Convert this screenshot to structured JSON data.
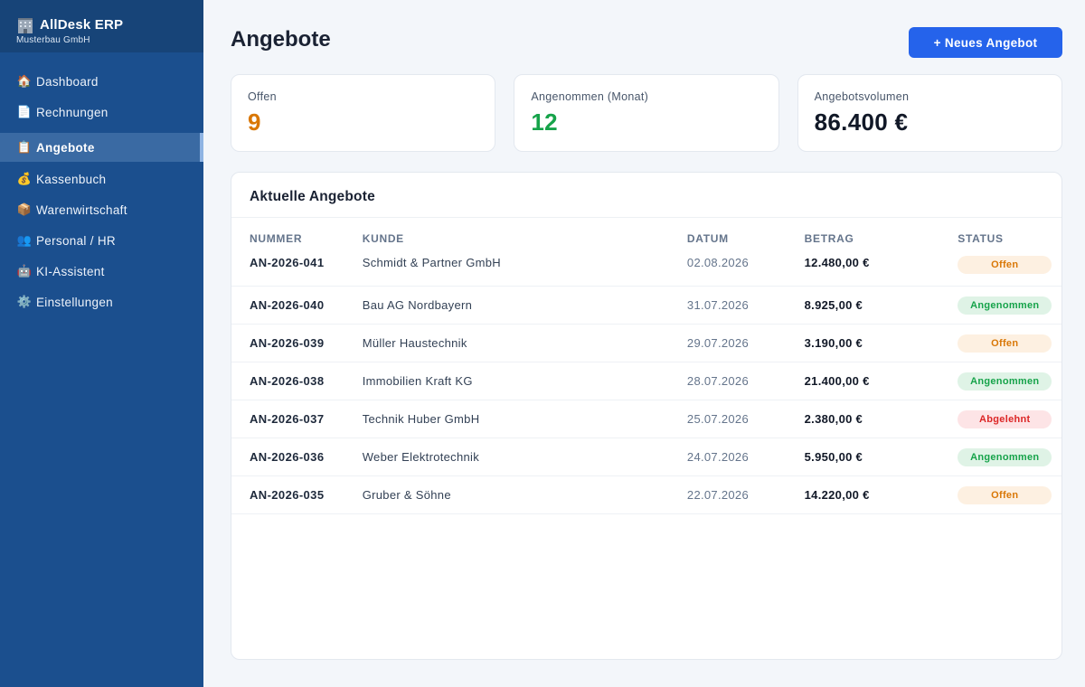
{
  "app": {
    "name": "AllDesk ERP",
    "company": "Musterbau GmbH",
    "logo_icon": "office-building-icon"
  },
  "sidebar": {
    "items": [
      {
        "label": "Dashboard",
        "icon": "🏠",
        "icon_name": "house-icon",
        "active": false
      },
      {
        "label": "Rechnungen",
        "icon": "📄",
        "icon_name": "document-icon",
        "active": false
      },
      {
        "label": "Angebote",
        "icon": "📋",
        "icon_name": "clipboard-icon",
        "active": true
      },
      {
        "label": "Kassenbuch",
        "icon": "💰",
        "icon_name": "money-bag-icon",
        "active": false
      },
      {
        "label": "Warenwirtschaft",
        "icon": "📦",
        "icon_name": "package-icon",
        "active": false
      },
      {
        "label": "Personal / HR",
        "icon": "👥",
        "icon_name": "people-icon",
        "active": false
      },
      {
        "label": "KI-Assistent",
        "icon": "🤖",
        "icon_name": "robot-icon",
        "active": false
      },
      {
        "label": "Einstellungen",
        "icon": "⚙️",
        "icon_name": "gear-icon",
        "active": false
      }
    ]
  },
  "header": {
    "title": "Angebote",
    "new_button_label": "+ Neues Angebot"
  },
  "kpis": [
    {
      "label": "Offen",
      "value": "9",
      "color": "#d97706"
    },
    {
      "label": "Angenommen (Monat)",
      "value": "12",
      "color": "#16a34a"
    },
    {
      "label": "Angebotsvolumen",
      "value": "86.400 €",
      "color": "#111827"
    }
  ],
  "table": {
    "title": "Aktuelle Angebote",
    "columns": [
      "NUMMER",
      "KUNDE",
      "DATUM",
      "BETRAG",
      "STATUS"
    ],
    "rows": [
      {
        "nummer": "AN-2026-041",
        "kunde": "Schmidt & Partner GmbH",
        "datum": "02.08.2026",
        "betrag": "12.480,00 €",
        "status": "Offen",
        "status_type": "offen"
      },
      {
        "nummer": "AN-2026-040",
        "kunde": "Bau AG Nordbayern",
        "datum": "31.07.2026",
        "betrag": "8.925,00 €",
        "status": "Angenommen",
        "status_type": "angenommen"
      },
      {
        "nummer": "AN-2026-039",
        "kunde": "Müller Haustechnik",
        "datum": "29.07.2026",
        "betrag": "3.190,00 €",
        "status": "Offen",
        "status_type": "offen"
      },
      {
        "nummer": "AN-2026-038",
        "kunde": "Immobilien Kraft KG",
        "datum": "28.07.2026",
        "betrag": "21.400,00 €",
        "status": "Angenommen",
        "status_type": "angenommen"
      },
      {
        "nummer": "AN-2026-037",
        "kunde": "Technik Huber GmbH",
        "datum": "25.07.2026",
        "betrag": "2.380,00 €",
        "status": "Abgelehnt",
        "status_type": "abgelehnt"
      },
      {
        "nummer": "AN-2026-036",
        "kunde": "Weber Elektrotechnik",
        "datum": "24.07.2026",
        "betrag": "5.950,00 €",
        "status": "Angenommen",
        "status_type": "angenommen"
      },
      {
        "nummer": "AN-2026-035",
        "kunde": "Gruber & Söhne",
        "datum": "22.07.2026",
        "betrag": "14.220,00 €",
        "status": "Offen",
        "status_type": "offen"
      }
    ]
  }
}
